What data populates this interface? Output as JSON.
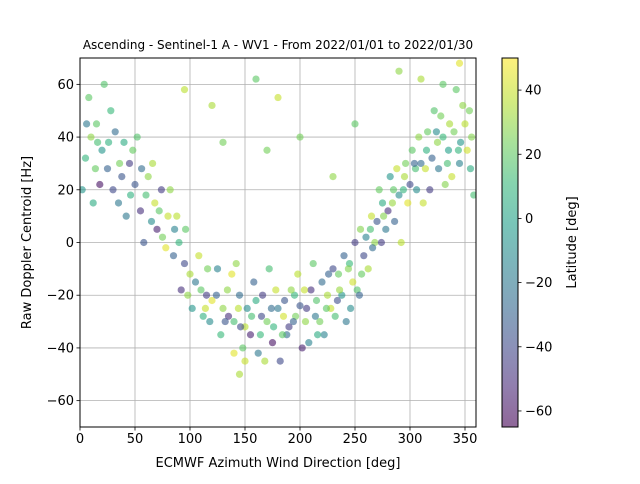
{
  "chart_data": {
    "type": "scatter",
    "title": "Ascending - Sentinel-1 A - WV1 - From 2022/01/01 to 2022/01/30",
    "xlabel": "ECMWF Azimuth Wind Direction [deg]",
    "ylabel": "Raw Doppler Centroid [Hz]",
    "xlim": [
      0,
      360
    ],
    "ylim": [
      -70,
      70
    ],
    "xticks": [
      "0",
      "50",
      "100",
      "150",
      "200",
      "250",
      "300",
      "350"
    ],
    "yticks": [
      "−60",
      "−40",
      "−20",
      "0",
      "20",
      "40",
      "60"
    ],
    "grid": true,
    "marker_alpha": 0.6,
    "colorbar": {
      "label": "Latitude [deg]",
      "range": [
        -65,
        50
      ],
      "ticks": [
        "−60",
        "−40",
        "−20",
        "0",
        "20",
        "40"
      ],
      "colormap": [
        "#440154",
        "#482878",
        "#3e4989",
        "#31688e",
        "#26828e",
        "#1f9e89",
        "#35b779",
        "#6ece58",
        "#b5de2b",
        "#fde725"
      ]
    },
    "trend_description": "Doppler forms a U-shape versus wind direction: about +25 to +40 Hz near 0/360 deg, dropping to about -25 Hz near 180 deg",
    "points": [
      [
        5,
        32,
        10
      ],
      [
        10,
        40,
        30
      ],
      [
        15,
        45,
        20
      ],
      [
        20,
        35,
        -5
      ],
      [
        25,
        28,
        -30
      ],
      [
        30,
        20,
        -40
      ],
      [
        35,
        15,
        -20
      ],
      [
        40,
        38,
        5
      ],
      [
        45,
        30,
        -45
      ],
      [
        50,
        22,
        -35
      ],
      [
        55,
        12,
        -50
      ],
      [
        60,
        18,
        15
      ],
      [
        65,
        8,
        -10
      ],
      [
        70,
        5,
        -55
      ],
      [
        75,
        2,
        25
      ],
      [
        80,
        10,
        40
      ],
      [
        85,
        -5,
        -30
      ],
      [
        90,
        0,
        10
      ],
      [
        95,
        -8,
        -40
      ],
      [
        100,
        -12,
        35
      ],
      [
        105,
        -15,
        -20
      ],
      [
        110,
        -18,
        20
      ],
      [
        115,
        -20,
        -45
      ],
      [
        120,
        -22,
        45
      ],
      [
        125,
        -10,
        -15
      ],
      [
        130,
        -25,
        30
      ],
      [
        135,
        -28,
        -50
      ],
      [
        140,
        -30,
        15
      ],
      [
        145,
        -20,
        -25
      ],
      [
        150,
        -32,
        38
      ],
      [
        155,
        -35,
        -55
      ],
      [
        160,
        -22,
        5
      ],
      [
        165,
        -28,
        -40
      ],
      [
        170,
        -30,
        25
      ],
      [
        175,
        -38,
        -60
      ],
      [
        180,
        -25,
        -20
      ],
      [
        185,
        -28,
        42
      ],
      [
        190,
        -32,
        -45
      ],
      [
        195,
        -20,
        10
      ],
      [
        200,
        -24,
        -35
      ],
      [
        205,
        -30,
        30
      ],
      [
        210,
        -18,
        -50
      ],
      [
        215,
        -22,
        18
      ],
      [
        220,
        -15,
        -25
      ],
      [
        225,
        -20,
        35
      ],
      [
        230,
        -10,
        -40
      ],
      [
        235,
        -12,
        22
      ],
      [
        240,
        -5,
        -30
      ],
      [
        245,
        -8,
        12
      ],
      [
        250,
        0,
        -45
      ],
      [
        255,
        5,
        28
      ],
      [
        260,
        2,
        -15
      ],
      [
        265,
        10,
        40
      ],
      [
        270,
        8,
        -35
      ],
      [
        275,
        15,
        5
      ],
      [
        280,
        12,
        -50
      ],
      [
        285,
        20,
        20
      ],
      [
        290,
        18,
        -10
      ],
      [
        295,
        25,
        35
      ],
      [
        300,
        22,
        -40
      ],
      [
        305,
        28,
        15
      ],
      [
        310,
        30,
        -25
      ],
      [
        315,
        35,
        8
      ],
      [
        320,
        32,
        -30
      ],
      [
        325,
        38,
        30
      ],
      [
        330,
        40,
        12
      ],
      [
        335,
        35,
        0
      ],
      [
        340,
        42,
        25
      ],
      [
        345,
        30,
        -15
      ],
      [
        350,
        45,
        38
      ],
      [
        355,
        28,
        5
      ],
      [
        8,
        55,
        20
      ],
      [
        18,
        22,
        -60
      ],
      [
        28,
        50,
        12
      ],
      [
        42,
        10,
        -20
      ],
      [
        62,
        25,
        30
      ],
      [
        78,
        -2,
        45
      ],
      [
        92,
        -18,
        -50
      ],
      [
        108,
        -5,
        40
      ],
      [
        118,
        -30,
        -10
      ],
      [
        138,
        -12,
        45
      ],
      [
        148,
        -40,
        20
      ],
      [
        158,
        -15,
        -30
      ],
      [
        168,
        -45,
        35
      ],
      [
        178,
        -18,
        40
      ],
      [
        188,
        -35,
        -25
      ],
      [
        198,
        -12,
        38
      ],
      [
        208,
        -38,
        -15
      ],
      [
        218,
        -30,
        25
      ],
      [
        228,
        -25,
        40
      ],
      [
        238,
        -20,
        -5
      ],
      [
        248,
        -15,
        42
      ],
      [
        258,
        -5,
        -40
      ],
      [
        268,
        0,
        30
      ],
      [
        278,
        5,
        -20
      ],
      [
        288,
        28,
        40
      ],
      [
        298,
        15,
        45
      ],
      [
        308,
        40,
        30
      ],
      [
        318,
        20,
        -45
      ],
      [
        328,
        48,
        25
      ],
      [
        338,
        25,
        40
      ],
      [
        348,
        52,
        30
      ],
      [
        358,
        18,
        15
      ],
      [
        12,
        15,
        5
      ],
      [
        22,
        60,
        18
      ],
      [
        32,
        42,
        -25
      ],
      [
        48,
        35,
        22
      ],
      [
        58,
        0,
        -35
      ],
      [
        68,
        15,
        40
      ],
      [
        82,
        20,
        30
      ],
      [
        96,
        5,
        20
      ],
      [
        112,
        -28,
        8
      ],
      [
        128,
        -35,
        12
      ],
      [
        142,
        -8,
        30
      ],
      [
        152,
        -25,
        -10
      ],
      [
        162,
        -42,
        -20
      ],
      [
        172,
        -10,
        15
      ],
      [
        182,
        -45,
        -40
      ],
      [
        192,
        -18,
        30
      ],
      [
        202,
        -40,
        -55
      ],
      [
        212,
        -8,
        20
      ],
      [
        222,
        -35,
        -15
      ],
      [
        232,
        -28,
        15
      ],
      [
        242,
        -30,
        -20
      ],
      [
        252,
        -18,
        18
      ],
      [
        262,
        -10,
        35
      ],
      [
        272,
        20,
        22
      ],
      [
        282,
        25,
        -5
      ],
      [
        292,
        0,
        38
      ],
      [
        302,
        35,
        20
      ],
      [
        312,
        15,
        40
      ],
      [
        322,
        50,
        18
      ],
      [
        332,
        22,
        28
      ],
      [
        342,
        58,
        20
      ],
      [
        352,
        35,
        42
      ],
      [
        2,
        20,
        -5
      ],
      [
        14,
        28,
        22
      ],
      [
        26,
        38,
        8
      ],
      [
        38,
        25,
        -35
      ],
      [
        52,
        40,
        18
      ],
      [
        66,
        30,
        35
      ],
      [
        74,
        20,
        -45
      ],
      [
        88,
        10,
        38
      ],
      [
        102,
        -25,
        -5
      ],
      [
        116,
        -10,
        25
      ],
      [
        124,
        -20,
        -30
      ],
      [
        134,
        -18,
        30
      ],
      [
        146,
        -32,
        -40
      ],
      [
        156,
        -28,
        15
      ],
      [
        166,
        -20,
        -45
      ],
      [
        176,
        -32,
        10
      ],
      [
        186,
        -22,
        -35
      ],
      [
        196,
        -28,
        25
      ],
      [
        206,
        -25,
        -45
      ],
      [
        216,
        -35,
        5
      ],
      [
        226,
        -12,
        -30
      ],
      [
        236,
        -18,
        32
      ],
      [
        246,
        -25,
        -10
      ],
      [
        256,
        -12,
        22
      ],
      [
        266,
        -2,
        -25
      ],
      [
        276,
        10,
        28
      ],
      [
        286,
        8,
        -30
      ],
      [
        296,
        30,
        25
      ],
      [
        306,
        20,
        -10
      ],
      [
        316,
        42,
        22
      ],
      [
        326,
        28,
        -20
      ],
      [
        336,
        45,
        35
      ],
      [
        346,
        38,
        -5
      ],
      [
        356,
        40,
        28
      ],
      [
        6,
        45,
        -20
      ],
      [
        16,
        38,
        15
      ],
      [
        36,
        30,
        25
      ],
      [
        46,
        18,
        8
      ],
      [
        56,
        28,
        -25
      ],
      [
        72,
        12,
        20
      ],
      [
        86,
        5,
        -15
      ],
      [
        98,
        -20,
        30
      ],
      [
        114,
        -25,
        40
      ],
      [
        132,
        -30,
        -35
      ],
      [
        144,
        -25,
        38
      ],
      [
        164,
        -35,
        12
      ],
      [
        174,
        -25,
        -25
      ],
      [
        184,
        -35,
        20
      ],
      [
        194,
        -30,
        -30
      ],
      [
        204,
        -18,
        40
      ],
      [
        214,
        -28,
        -20
      ],
      [
        224,
        -25,
        20
      ],
      [
        234,
        -22,
        -38
      ],
      [
        244,
        -10,
        28
      ],
      [
        254,
        -20,
        -30
      ],
      [
        264,
        5,
        15
      ],
      [
        274,
        0,
        -45
      ],
      [
        284,
        15,
        32
      ],
      [
        294,
        20,
        10
      ],
      [
        304,
        30,
        -30
      ],
      [
        314,
        28,
        40
      ],
      [
        324,
        42,
        -10
      ],
      [
        334,
        30,
        15
      ],
      [
        344,
        35,
        10
      ],
      [
        354,
        50,
        25
      ],
      [
        120,
        52,
        35
      ],
      [
        160,
        62,
        20
      ],
      [
        180,
        55,
        40
      ],
      [
        200,
        40,
        25
      ],
      [
        95,
        58,
        38
      ],
      [
        250,
        45,
        20
      ],
      [
        290,
        65,
        30
      ],
      [
        310,
        62,
        35
      ],
      [
        330,
        60,
        20
      ],
      [
        345,
        68,
        45
      ],
      [
        130,
        38,
        25
      ],
      [
        230,
        25,
        30
      ],
      [
        150,
        -45,
        40
      ],
      [
        145,
        -50,
        35
      ],
      [
        140,
        -42,
        45
      ],
      [
        170,
        35,
        25
      ]
    ]
  }
}
